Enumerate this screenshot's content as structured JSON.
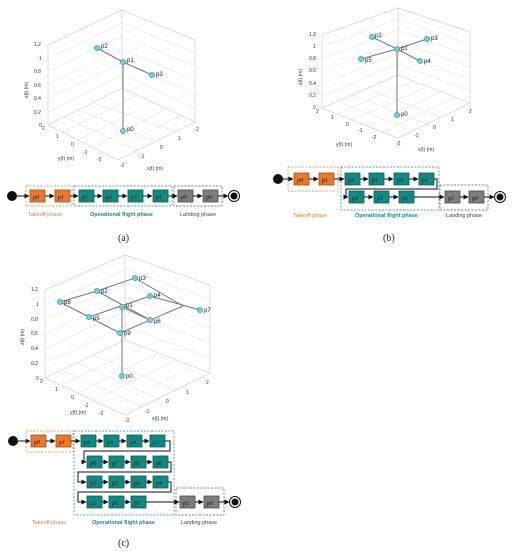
{
  "panels": {
    "a": {
      "caption": "(a)",
      "z_label": "z(t) (m)",
      "y_label": "y(t) (m)",
      "x_label": "x(t) (m)",
      "z_ticks": [
        "1.2",
        "1",
        "0.8",
        "0.6",
        "0.4",
        "0.2",
        "0"
      ],
      "y_ticks": [
        "2",
        "1",
        "0",
        "-1",
        "-2"
      ],
      "x_ticks": [
        "-2",
        "-1",
        "0",
        "1",
        "2"
      ],
      "points": [
        "p2",
        "p1",
        "p3",
        "p0"
      ],
      "timeline": [
        "p0",
        "p1",
        "p2",
        "p1",
        "p3",
        "p1",
        "p0"
      ],
      "phase_labels": [
        "Takeoff phase",
        "Operational flight phase",
        "Landing phase"
      ]
    },
    "b": {
      "caption": "(b)",
      "z_label": "z(t) (m)",
      "y_label": "y(t) (m)",
      "x_label": "x(t) (m)",
      "z_ticks": [
        "1.2",
        "1",
        "0.8",
        "0.6",
        "0.4",
        "0.2",
        "0"
      ],
      "y_ticks": [
        "2",
        "1",
        "0",
        "-1",
        "-2"
      ],
      "x_ticks": [
        "-2",
        "-1",
        "0",
        "1",
        "2"
      ],
      "points": [
        "p2",
        "p1",
        "p3",
        "p5",
        "p4",
        "p0"
      ],
      "timeline_row1": [
        "p0",
        "p1",
        "p2",
        "p1",
        "p3",
        "p1"
      ],
      "timeline_row2": [
        "p4",
        "p1",
        "p5",
        "p1",
        "p0"
      ],
      "phase_labels": [
        "Takeoff phase",
        "Operational flight phase",
        "Landing phase"
      ]
    },
    "c": {
      "caption": "(c)",
      "z_label": "z(t) (m)",
      "y_label": "y(t) (m)",
      "x_label": "x(t) (m)",
      "z_ticks": [
        "1.2",
        "1",
        "0.8",
        "0.6",
        "0.4",
        "0.2",
        "0"
      ],
      "y_ticks": [
        "2",
        "1",
        "0",
        "-1",
        "-2"
      ],
      "x_ticks": [
        "-2",
        "-1",
        "0",
        "1",
        "2"
      ],
      "points": [
        "p3",
        "p2",
        "p4",
        "p8",
        "p1",
        "p7",
        "p5",
        "p6",
        "p9",
        "p0"
      ],
      "timeline_row1": [
        "p0",
        "p1",
        "p2",
        "p3",
        "p4",
        "p1",
        "p5"
      ],
      "timeline_row2": [
        "p6",
        "p7",
        "p1",
        "p8",
        "p9"
      ],
      "timeline_row3": [
        "p1",
        "p2",
        "p3",
        "p4",
        "p1"
      ],
      "timeline_row4": [
        "p5",
        "p6",
        "p7",
        "p1",
        "p0"
      ],
      "phase_labels": [
        "Takeoff phase",
        "Operational flight phase",
        "Landing phase"
      ]
    }
  }
}
